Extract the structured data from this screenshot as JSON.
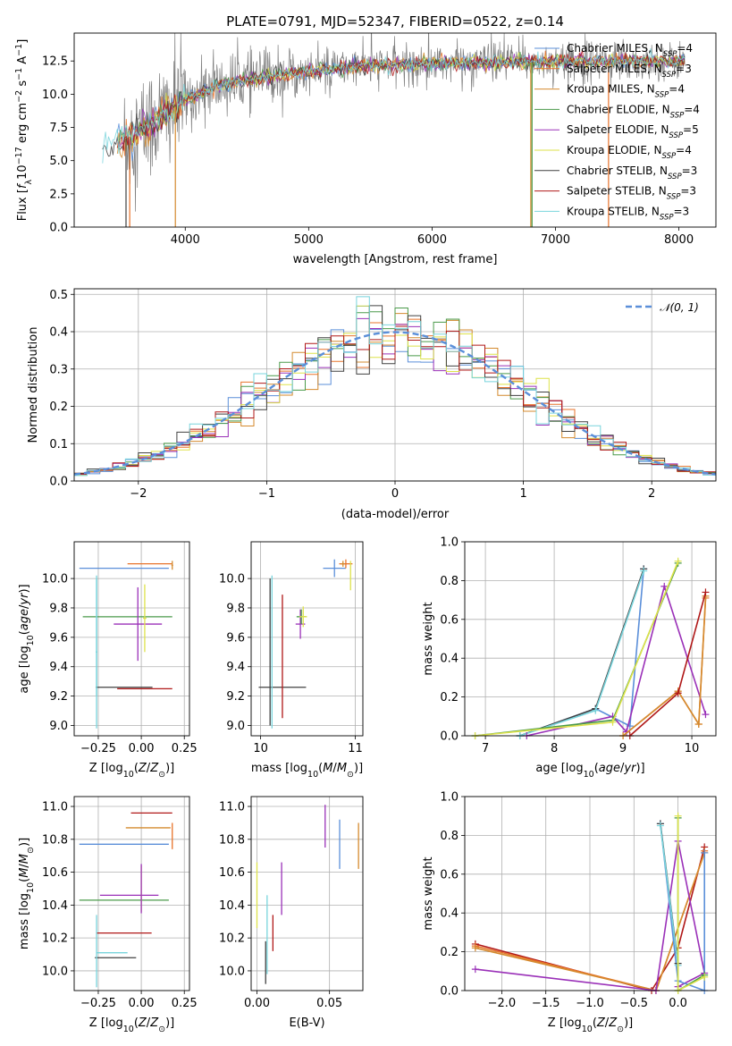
{
  "title": "PLATE=0791, MJD=52347, FIBERID=0522, z=0.14",
  "model_colors": {
    "Chabrier MILES": "#5b8fd9",
    "Salpeter MILES": "#e8732a",
    "Kroupa MILES": "#d48a2e",
    "Chabrier ELODIE": "#4a9a4a",
    "Salpeter ELODIE": "#9a30b8",
    "Kroupa ELODIE": "#dde24a",
    "Chabrier STELIB": "#404040",
    "Salpeter STELIB": "#b01818",
    "Kroupa STELIB": "#78d4dc"
  },
  "chart_data": [
    {
      "id": "spectrum",
      "type": "line",
      "xlabel": "wavelength [Angstrom, rest frame]",
      "ylabel": "Flux [f_λ 10^-17 erg cm^-2 s^-1 A^-1]",
      "xlim": [
        3100,
        8300
      ],
      "ylim": [
        0,
        14.6
      ],
      "xticks": [
        4000,
        5000,
        6000,
        7000,
        8000
      ],
      "yticks": [
        0.0,
        2.5,
        5.0,
        7.5,
        10.0,
        12.5
      ],
      "ytick_labels": [
        "0.0",
        "2.5",
        "5.0",
        "7.5",
        "10.0",
        "12.5"
      ],
      "data_color": "#808080",
      "legend_position": "right",
      "legend": [
        {
          "label": "Chabrier MILES, N",
          "sub": "SSP",
          "tail": "=4",
          "key": "Chabrier MILES"
        },
        {
          "label": "Salpeter MILES, N",
          "sub": "SSP",
          "tail": "=3",
          "key": "Salpeter MILES"
        },
        {
          "label": "Kroupa MILES, N",
          "sub": "SSP",
          "tail": "=4",
          "key": "Kroupa MILES"
        },
        {
          "label": "Chabrier ELODIE, N",
          "sub": "SSP",
          "tail": "=4",
          "key": "Chabrier ELODIE"
        },
        {
          "label": "Salpeter ELODIE, N",
          "sub": "SSP",
          "tail": "=5",
          "key": "Salpeter ELODIE"
        },
        {
          "label": "Kroupa ELODIE, N",
          "sub": "SSP",
          "tail": "=4",
          "key": "Kroupa ELODIE"
        },
        {
          "label": "Chabrier STELIB, N",
          "sub": "SSP",
          "tail": "=3",
          "key": "Chabrier STELIB"
        },
        {
          "label": "Salpeter STELIB, N",
          "sub": "SSP",
          "tail": "=3",
          "key": "Salpeter STELIB"
        },
        {
          "label": "Kroupa STELIB, N",
          "sub": "SSP",
          "tail": "=3",
          "key": "Kroupa STELIB"
        }
      ],
      "continuum_x": [
        3330,
        3450,
        3550,
        3700,
        3850,
        4000,
        4200,
        4400,
        4600,
        4800,
        5000,
        5300,
        5600,
        6000,
        6400,
        6800,
        7200,
        7600,
        8000,
        8050
      ],
      "continuum_y": [
        6.0,
        6.3,
        6.8,
        7.6,
        8.6,
        9.6,
        10.4,
        10.9,
        11.2,
        11.5,
        11.7,
        12.0,
        12.2,
        12.3,
        12.4,
        12.4,
        12.5,
        12.5,
        12.5,
        12.5
      ],
      "vertical_drops": [
        {
          "x": 3520,
          "key": "Chabrier STELIB"
        },
        {
          "x": 3550,
          "key": "Salpeter MILES"
        },
        {
          "x": 3920,
          "key": "Kroupa MILES"
        },
        {
          "x": 6800,
          "key": "Kroupa MILES"
        },
        {
          "x": 6810,
          "key": "Chabrier ELODIE"
        },
        {
          "x": 7430,
          "key": "Salpeter MILES"
        }
      ]
    },
    {
      "id": "residuals",
      "type": "histogram",
      "xlabel": "(data-model)/error",
      "ylabel": "Normed distribution",
      "xlim": [
        -2.5,
        2.5
      ],
      "ylim": [
        0,
        0.515
      ],
      "xticks": [
        -2,
        -1,
        0,
        1,
        2
      ],
      "xtick_labels": [
        "−2",
        "−1",
        "0",
        "1",
        "2"
      ],
      "yticks": [
        0.0,
        0.1,
        0.2,
        0.3,
        0.4,
        0.5
      ],
      "ytick_labels": [
        "0.0",
        "0.1",
        "0.2",
        "0.3",
        "0.4",
        "0.5"
      ],
      "grid": true,
      "reference_curve": {
        "label": "𝒩(0, 1)",
        "color": "#5b8fd9",
        "style": "dashed"
      },
      "legend_position": "top-right",
      "bin_width": 0.1
    },
    {
      "id": "age_vs_Z",
      "type": "scatter",
      "xlabel": "Z [log10(Z/Z⊙)]",
      "ylabel": "age [log10(age/yr)]",
      "xlim": [
        -0.39,
        0.28
      ],
      "ylim": [
        8.93,
        10.25
      ],
      "xticks": [
        -0.25,
        0.0,
        0.25
      ],
      "xtick_labels": [
        "−0.25",
        "0.00",
        "0.25"
      ],
      "yticks": [
        9.0,
        9.2,
        9.4,
        9.6,
        9.8,
        10.0
      ],
      "ytick_labels": [
        "9.0",
        "9.2",
        "9.4",
        "9.6",
        "9.8",
        "10.0"
      ],
      "grid": true,
      "points": [
        {
          "key": "Chabrier MILES",
          "x": -0.1,
          "xerr": 0.26,
          "y": 10.07,
          "yerr": 0.0
        },
        {
          "key": "Salpeter MILES",
          "x": 0.05,
          "xerr": 0.13,
          "y": 10.1,
          "yerr": 0.0
        },
        {
          "key": "Kroupa MILES",
          "x": 0.18,
          "xerr": 0.005,
          "y": 10.09,
          "yerr": 0.03
        },
        {
          "key": "Chabrier ELODIE",
          "x": -0.08,
          "xerr": 0.26,
          "y": 9.74,
          "yerr": 0.0
        },
        {
          "key": "Salpeter ELODIE",
          "x": -0.02,
          "xerr": 0.14,
          "y": 9.69,
          "yerr": 0.25
        },
        {
          "key": "Kroupa ELODIE",
          "x": 0.02,
          "xerr": 0.01,
          "y": 9.73,
          "yerr": 0.23
        },
        {
          "key": "Chabrier STELIB",
          "x": -0.1,
          "xerr": 0.165,
          "y": 9.26,
          "yerr": 0.0
        },
        {
          "key": "Salpeter STELIB",
          "x": 0.02,
          "xerr": 0.16,
          "y": 9.25,
          "yerr": 0.0
        },
        {
          "key": "Kroupa STELIB",
          "x": -0.26,
          "xerr": 0.005,
          "y": 9.5,
          "yerr": 0.52
        },
        {
          "key": "Kroupa STELIB",
          "x": -0.26,
          "xerr": 0.0,
          "y": 9.6,
          "yerr": 0.4
        }
      ]
    },
    {
      "id": "age_vs_mass",
      "type": "scatter",
      "xlabel": "mass [log10(M/M⊙)]",
      "ylabel": "",
      "xlim": [
        9.9,
        11.08
      ],
      "ylim": [
        8.93,
        10.25
      ],
      "xticks": [
        10,
        11
      ],
      "xtick_labels": [
        "10",
        "11"
      ],
      "yticks": [
        9.0,
        9.2,
        9.4,
        9.6,
        9.8,
        10.0
      ],
      "ytick_labels": [
        "9.0",
        "9.2",
        "9.4",
        "9.6",
        "9.8",
        "10.0"
      ],
      "grid": true,
      "points": [
        {
          "key": "Chabrier MILES",
          "x": 10.78,
          "xerr": 0.12,
          "y": 10.07,
          "yerr": 0.06
        },
        {
          "key": "Salpeter MILES",
          "x": 10.9,
          "xerr": 0.07,
          "y": 10.1,
          "yerr": 0.03
        },
        {
          "key": "Kroupa MILES",
          "x": 10.87,
          "xerr": 0.02,
          "y": 10.1,
          "yerr": 0.02
        },
        {
          "key": "Salpeter ELODIE",
          "x": 10.42,
          "xerr": 0.05,
          "y": 9.69,
          "yerr": 0.1
        },
        {
          "key": "Chabrier ELODIE",
          "x": 10.43,
          "xerr": 0.05,
          "y": 9.74,
          "yerr": 0.05
        },
        {
          "key": "Kroupa ELODIE",
          "x": 10.45,
          "xerr": 0.04,
          "y": 9.74,
          "yerr": 0.07
        },
        {
          "key": "Chabrier STELIB",
          "x": 10.23,
          "xerr": 0.25,
          "y": 9.26,
          "yerr": 0.0
        },
        {
          "key": "Kroupa STELIB",
          "x": 10.12,
          "xerr": 0.0,
          "y": 9.5,
          "yerr": 0.52
        },
        {
          "key": "Chabrier STELIB",
          "x": 10.1,
          "xerr": 0.0,
          "y": 9.5,
          "yerr": 0.5
        },
        {
          "key": "Salpeter STELIB",
          "x": 10.23,
          "xerr": 0.0,
          "y": 9.47,
          "yerr": 0.42
        },
        {
          "key": "Salpeter ELODIE",
          "x": 10.45,
          "xerr": 0.0,
          "y": 9.6,
          "yerr": 0.0
        },
        {
          "key": "Kroupa ELODIE",
          "x": 10.95,
          "xerr": 0.0,
          "y": 10.02,
          "yerr": 0.1
        }
      ]
    },
    {
      "id": "massweight_vs_age",
      "type": "line",
      "xlabel": "age [log10(age/yr)]",
      "ylabel": "mass weight",
      "xlim": [
        6.7,
        10.35
      ],
      "ylim": [
        0,
        1.0
      ],
      "xticks": [
        7,
        8,
        9,
        10
      ],
      "xtick_labels": [
        "7",
        "8",
        "9",
        "10"
      ],
      "yticks": [
        0.0,
        0.2,
        0.4,
        0.6,
        0.8,
        1.0
      ],
      "ytick_labels": [
        "0.0",
        "0.2",
        "0.4",
        "0.6",
        "0.8",
        "1.0"
      ],
      "grid": true,
      "series": [
        {
          "key": "Chabrier MILES",
          "x": [
            7.5,
            8.6,
            9.1,
            9.3
          ],
          "y": [
            0.0,
            0.14,
            0.05,
            0.86
          ]
        },
        {
          "key": "Chabrier STELIB",
          "x": [
            7.5,
            8.6,
            9.3
          ],
          "y": [
            0.0,
            0.14,
            0.86
          ]
        },
        {
          "key": "Kroupa STELIB",
          "x": [
            7.5,
            8.6,
            9.3
          ],
          "y": [
            0.0,
            0.13,
            0.85
          ]
        },
        {
          "key": "Salpeter ELODIE",
          "x": [
            7.6,
            8.85,
            9.05,
            9.6,
            10.2
          ],
          "y": [
            0.0,
            0.1,
            0.02,
            0.77,
            0.11
          ]
        },
        {
          "key": "Salpeter MILES",
          "x": [
            9.0,
            9.8,
            10.1,
            10.2
          ],
          "y": [
            0.0,
            0.23,
            0.06,
            0.71
          ]
        },
        {
          "key": "Kroupa MILES",
          "x": [
            9.0,
            9.8,
            10.1,
            10.2
          ],
          "y": [
            0.0,
            0.23,
            0.06,
            0.72
          ]
        },
        {
          "key": "Salpeter STELIB",
          "x": [
            9.1,
            9.8,
            10.2
          ],
          "y": [
            0.0,
            0.22,
            0.74
          ]
        },
        {
          "key": "Chabrier ELODIE",
          "x": [
            6.85,
            8.85,
            9.8
          ],
          "y": [
            0.0,
            0.08,
            0.89
          ]
        },
        {
          "key": "Kroupa ELODIE",
          "x": [
            6.85,
            8.85,
            9.8
          ],
          "y": [
            0.0,
            0.07,
            0.9
          ]
        }
      ]
    },
    {
      "id": "mass_vs_Z",
      "type": "scatter",
      "xlabel": "Z [log10(Z/Z⊙)]",
      "ylabel": "mass [log10(M/M⊙)]",
      "xlim": [
        -0.39,
        0.28
      ],
      "ylim": [
        9.88,
        11.06
      ],
      "xticks": [
        -0.25,
        0.0,
        0.25
      ],
      "xtick_labels": [
        "−0.25",
        "0.00",
        "0.25"
      ],
      "yticks": [
        10.0,
        10.2,
        10.4,
        10.6,
        10.8,
        11.0
      ],
      "ytick_labels": [
        "10.0",
        "10.2",
        "10.4",
        "10.6",
        "10.8",
        "11.0"
      ],
      "grid": true,
      "points": [
        {
          "key": "Salpeter STELIB",
          "x": 0.06,
          "xerr": 0.12,
          "y": 10.96,
          "yerr": 0.0
        },
        {
          "key": "Kroupa MILES",
          "x": 0.04,
          "xerr": 0.13,
          "y": 10.87,
          "yerr": 0.0
        },
        {
          "key": "Salpeter MILES",
          "x": 0.18,
          "xerr": 0.0,
          "y": 10.82,
          "yerr": 0.08
        },
        {
          "key": "Chabrier MILES",
          "x": -0.1,
          "xerr": 0.26,
          "y": 10.77,
          "yerr": 0.0
        },
        {
          "key": "Salpeter ELODIE",
          "x": -0.07,
          "xerr": 0.17,
          "y": 10.46,
          "yerr": 0.0
        },
        {
          "key": "Chabrier ELODIE",
          "x": -0.1,
          "xerr": 0.26,
          "y": 10.43,
          "yerr": 0.0
        },
        {
          "key": "Kroupa ELODIE",
          "x": 0.0,
          "xerr": 0.0,
          "y": 10.5,
          "yerr": 0.14
        },
        {
          "key": "Salpeter ELODIE",
          "x": 0.0,
          "xerr": 0.0,
          "y": 10.5,
          "yerr": 0.15
        },
        {
          "key": "Salpeter STELIB",
          "x": -0.1,
          "xerr": 0.16,
          "y": 10.23,
          "yerr": 0.0
        },
        {
          "key": "Kroupa STELIB",
          "x": -0.17,
          "xerr": 0.09,
          "y": 10.11,
          "yerr": 0.0
        },
        {
          "key": "Chabrier STELIB",
          "x": -0.15,
          "xerr": 0.12,
          "y": 10.08,
          "yerr": 0.0
        },
        {
          "key": "Kroupa STELIB",
          "x": -0.26,
          "xerr": 0.0,
          "y": 10.12,
          "yerr": 0.22
        }
      ]
    },
    {
      "id": "mass_vs_EBV",
      "type": "scatter",
      "xlabel": "E(B-V)",
      "ylabel": "",
      "xlim": [
        -0.004,
        0.073
      ],
      "ylim": [
        9.88,
        11.06
      ],
      "xticks": [
        0.0,
        0.05
      ],
      "xtick_labels": [
        "0.00",
        "0.05"
      ],
      "yticks": [
        10.0,
        10.2,
        10.4,
        10.6,
        10.8,
        11.0
      ],
      "ytick_labels": [
        "10.0",
        "10.2",
        "10.4",
        "10.6",
        "10.8",
        "11.0"
      ],
      "grid": true,
      "points": [
        {
          "key": "Salpeter ELODIE",
          "x": 0.047,
          "xerr": 0.0,
          "y": 10.88,
          "yerr": 0.13
        },
        {
          "key": "Chabrier MILES",
          "x": 0.057,
          "xerr": 0.0,
          "y": 10.77,
          "yerr": 0.15
        },
        {
          "key": "Kroupa MILES",
          "x": 0.07,
          "xerr": 0.0,
          "y": 10.76,
          "yerr": 0.14
        },
        {
          "key": "Kroupa ELODIE",
          "x": 0.0,
          "xerr": 0.0,
          "y": 10.46,
          "yerr": 0.2
        },
        {
          "key": "Salpeter ELODIE",
          "x": 0.017,
          "xerr": 0.0,
          "y": 10.5,
          "yerr": 0.16
        },
        {
          "key": "Kroupa STELIB",
          "x": 0.007,
          "xerr": 0.0,
          "y": 10.22,
          "yerr": 0.24
        },
        {
          "key": "Salpeter STELIB",
          "x": 0.011,
          "xerr": 0.0,
          "y": 10.23,
          "yerr": 0.11
        },
        {
          "key": "Chabrier STELIB",
          "x": 0.006,
          "xerr": 0.0,
          "y": 10.05,
          "yerr": 0.13
        }
      ]
    },
    {
      "id": "massweight_vs_Z",
      "type": "line",
      "xlabel": "Z [log10(Z/Z⊙)]",
      "ylabel": "mass weight",
      "xlim": [
        -2.42,
        0.43
      ],
      "ylim": [
        0,
        1.0
      ],
      "xticks": [
        -2.0,
        -1.5,
        -1.0,
        -0.5,
        0.0
      ],
      "xtick_labels": [
        "−2.0",
        "−1.5",
        "−1.0",
        "−0.5",
        "0.0"
      ],
      "yticks": [
        0.0,
        0.2,
        0.4,
        0.6,
        0.8,
        1.0
      ],
      "ytick_labels": [
        "0.0",
        "0.2",
        "0.4",
        "0.6",
        "0.8",
        "1.0"
      ],
      "grid": true,
      "series": [
        {
          "key": "Salpeter STELIB",
          "x": [
            -2.3,
            -0.3,
            0.0,
            0.3
          ],
          "y": [
            0.24,
            0.0,
            0.22,
            0.74
          ]
        },
        {
          "key": "Salpeter MILES",
          "x": [
            -2.3,
            -0.25,
            0.3,
            0.3
          ],
          "y": [
            0.23,
            0.0,
            0.71,
            0.72
          ]
        },
        {
          "key": "Kroupa MILES",
          "x": [
            -2.3,
            -0.25,
            0.3
          ],
          "y": [
            0.22,
            0.0,
            0.71
          ]
        },
        {
          "key": "Salpeter ELODIE",
          "x": [
            -2.3,
            -0.25,
            0.0,
            0.3,
            0.0
          ],
          "y": [
            0.11,
            0.0,
            0.77,
            0.09,
            0.02
          ]
        },
        {
          "key": "Chabrier MILES",
          "x": [
            -0.2,
            0.0,
            0.3,
            0.3
          ],
          "y": [
            0.86,
            0.05,
            0.0,
            0.71
          ]
        },
        {
          "key": "Chabrier STELIB",
          "x": [
            -0.2,
            0.0
          ],
          "y": [
            0.86,
            0.14
          ]
        },
        {
          "key": "Kroupa STELIB",
          "x": [
            -0.2,
            0.0
          ],
          "y": [
            0.85,
            0.13
          ]
        },
        {
          "key": "Chabrier ELODIE",
          "x": [
            0.0,
            0.0,
            0.3
          ],
          "y": [
            0.89,
            0.0,
            0.08
          ]
        },
        {
          "key": "Kroupa ELODIE",
          "x": [
            0.0,
            0.0,
            0.3
          ],
          "y": [
            0.9,
            0.0,
            0.07
          ]
        }
      ]
    }
  ]
}
